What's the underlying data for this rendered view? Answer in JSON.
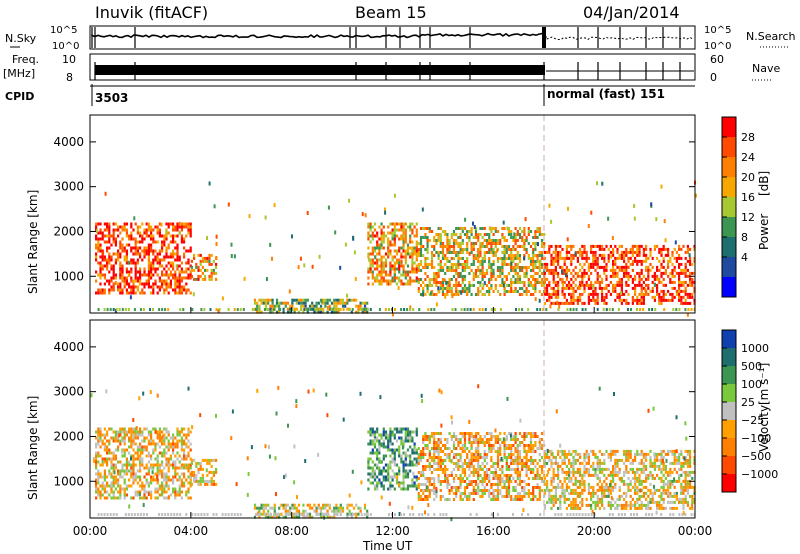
{
  "header": {
    "station": "Inuvik (fitACF)",
    "beam": "Beam 15",
    "date": "04/Jan/2014"
  },
  "left_labels": {
    "nsky": "N.Sky",
    "freq": "Freq.",
    "freq_unit": "[MHz]",
    "cpid": "CPID"
  },
  "right_labels": {
    "nsearch": "N.Search",
    "nave": "Nave"
  },
  "noise_panel": {
    "tick_top": "10^5",
    "tick_bottom": "10^0",
    "rtick_top": "10^5",
    "rtick_bottom": "10^0"
  },
  "freq_panel": {
    "tick_top": "10",
    "tick_bottom": "8",
    "rtick_top": "60",
    "rtick_bottom": "0"
  },
  "cpid_panel": {
    "cpid1": "3503",
    "cpid2": "normal (fast) 151"
  },
  "colorbars": {
    "power": {
      "title": "Power",
      "unit": "[dB]",
      "ticks": [
        "28",
        "24",
        "20",
        "16",
        "12",
        "8",
        "4"
      ],
      "colors": [
        "#ff0000",
        "#ff4a00",
        "#ff7f00",
        "#f7a800",
        "#a8c832",
        "#3c9652",
        "#1f6e6e",
        "#1e4aa0",
        "#0000ff"
      ]
    },
    "velocity": {
      "title": "Velocity",
      "unit": "[m s⁻¹]",
      "ticks": [
        "1000",
        "500",
        "100",
        "25",
        "−25",
        "−100",
        "−500",
        "−1000"
      ],
      "colors": [
        "#1040b0",
        "#1f6e6e",
        "#3c9652",
        "#7ac83c",
        "#c0c0c0",
        "#ffa000",
        "#ff7f00",
        "#ff4a00",
        "#ff0000"
      ]
    }
  },
  "axes": {
    "ylabel": "Slant Range [km]",
    "xlabel": "Time UT",
    "yticks": [
      "1000",
      "2000",
      "3000",
      "4000"
    ],
    "xticks": [
      "00:00",
      "04:00",
      "08:00",
      "12:00",
      "16:00",
      "20:00",
      "00:00"
    ]
  },
  "chart_data": [
    {
      "type": "heatmap",
      "title": "Power",
      "xlabel": "Time UT",
      "ylabel": "Slant Range [km]",
      "xlim": [
        0,
        24
      ],
      "ylim": [
        180,
        4600
      ],
      "zlim": [
        0,
        30
      ],
      "regions": [
        {
          "t0": 0.2,
          "t1": 4.0,
          "r0": 600,
          "r1": 2200,
          "z": 26
        },
        {
          "t0": 4.0,
          "t1": 5.0,
          "r0": 900,
          "r1": 1500,
          "z": 20
        },
        {
          "t0": 6.5,
          "t1": 11.0,
          "r0": 200,
          "r1": 500,
          "z": 14
        },
        {
          "t0": 11.0,
          "t1": 13.0,
          "r0": 800,
          "r1": 2200,
          "z": 20
        },
        {
          "t0": 13.0,
          "t1": 18.0,
          "r0": 600,
          "r1": 2100,
          "z": 18
        },
        {
          "t0": 18.0,
          "t1": 24.0,
          "r0": 400,
          "r1": 1700,
          "z": 26
        }
      ]
    },
    {
      "type": "heatmap",
      "title": "Velocity",
      "xlabel": "Time UT",
      "ylabel": "Slant Range [km]",
      "xlim": [
        0,
        24
      ],
      "ylim": [
        180,
        4600
      ],
      "zlim": [
        -1000,
        1000
      ],
      "regions": [
        {
          "t0": 0.2,
          "t1": 4.0,
          "r0": 600,
          "r1": 2200,
          "z": -150
        },
        {
          "t0": 4.0,
          "t1": 5.0,
          "r0": 900,
          "r1": 1500,
          "z": -120
        },
        {
          "t0": 6.5,
          "t1": 11.0,
          "r0": 200,
          "r1": 500,
          "z": 60
        },
        {
          "t0": 11.0,
          "t1": 13.0,
          "r0": 800,
          "r1": 2200,
          "z": 400
        },
        {
          "t0": 13.0,
          "t1": 18.0,
          "r0": 600,
          "r1": 2100,
          "z": -200
        },
        {
          "t0": 18.0,
          "t1": 24.0,
          "r0": 400,
          "r1": 1700,
          "z": -100
        }
      ]
    }
  ]
}
